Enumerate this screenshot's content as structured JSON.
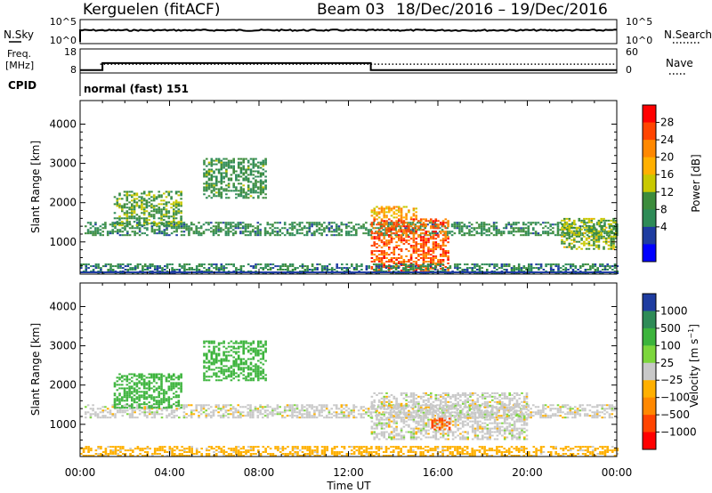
{
  "header": {
    "station": "Kerguelen (fitACF)",
    "beam": "Beam 03",
    "dates": "18/Dec/2016 – 19/Dec/2016"
  },
  "nsky_panel": {
    "left_label": "N.Sky",
    "right_label": "N.Search",
    "left_ticks": [
      "10^5",
      "10^0"
    ],
    "right_ticks": [
      "10^5",
      "10^0"
    ]
  },
  "freq_panel": {
    "left_label_1": "Freq.",
    "left_label_2": "[MHz]",
    "right_label": "Nave",
    "left_ticks": [
      "18",
      "8"
    ],
    "right_ticks": [
      "60",
      "0"
    ],
    "cpid_label": "CPID",
    "cpid_value": "normal (fast) 151"
  },
  "power_panel": {
    "ylabel": "Slant Range [km]",
    "yticks": [
      "4000",
      "3000",
      "2000",
      "1000"
    ],
    "colorbar_label": "Power [dB]",
    "colorbar_ticks": [
      "28",
      "24",
      "20",
      "16",
      "12",
      "8",
      "4"
    ],
    "colors": [
      "#ff0000",
      "#ff4400",
      "#ff8800",
      "#ffb000",
      "#c8c800",
      "#3c8c3c",
      "#2e8b57",
      "#1e3ca0",
      "#0000ff"
    ]
  },
  "velocity_panel": {
    "ylabel": "Slant Range [km]",
    "yticks": [
      "4000",
      "3000",
      "2000",
      "1000"
    ],
    "colorbar_label": "Velocity [m s^-1]",
    "colorbar_ticks": [
      "1000",
      "500",
      "100",
      "25",
      "−25",
      "−100",
      "−500",
      "−1000"
    ],
    "colors": [
      "#1e3ca0",
      "#2e8b57",
      "#3cb43c",
      "#7cd63c",
      "#c8c8c8",
      "#ffb000",
      "#ff8800",
      "#ff4400",
      "#ff0000"
    ]
  },
  "x_axis": {
    "ticks": [
      "00:00",
      "04:00",
      "08:00",
      "12:00",
      "16:00",
      "20:00",
      "00:00"
    ],
    "label": "Time UT"
  },
  "chart_data": [
    {
      "type": "line",
      "name": "N.Sky / N.Search",
      "x_range_hours": [
        0,
        24
      ],
      "y_scale": "log",
      "ylim": [
        1,
        100000
      ]
    },
    {
      "type": "line",
      "name": "Freq / Nave",
      "x_range_hours": [
        0,
        24
      ],
      "freq_ylim_mhz": [
        8,
        18
      ],
      "nave_ylim": [
        0,
        60
      ],
      "freq_steps": [
        {
          "start_hour": 0,
          "end_hour": 1,
          "value": 9.2
        },
        {
          "start_hour": 1,
          "end_hour": 13,
          "value": 12.1
        },
        {
          "start_hour": 13,
          "end_hour": 24,
          "value": 9.2
        }
      ],
      "nave_approx": 22
    },
    {
      "type": "heatmap",
      "name": "Power",
      "x_label": "Time UT",
      "y_label": "Slant Range [km]",
      "x_range_hours": [
        0,
        24
      ],
      "y_range_km": [
        180,
        4600
      ],
      "color_range_db": [
        0,
        31
      ],
      "features": [
        {
          "from_hour": 0.2,
          "to_hour": 24,
          "range_km": [
            1150,
            1500
          ],
          "level_db": 9
        },
        {
          "from_hour": 1.5,
          "to_hour": 4.5,
          "range_km": [
            1400,
            2300
          ],
          "level_db": 12
        },
        {
          "from_hour": 5.5,
          "to_hour": 8.3,
          "range_km": [
            2100,
            3100
          ],
          "level_db": 10
        },
        {
          "from_hour": 13.0,
          "to_hour": 16.5,
          "range_km": [
            250,
            1600
          ],
          "level_db": 26
        },
        {
          "from_hour": 13.0,
          "to_hour": 15.0,
          "range_km": [
            1600,
            1900
          ],
          "level_db": 20
        },
        {
          "from_hour": 21.5,
          "to_hour": 24,
          "range_km": [
            800,
            1600
          ],
          "level_db": 14
        },
        {
          "from_hour": 0,
          "to_hour": 24,
          "range_km": [
            180,
            450
          ],
          "level_db": 8
        }
      ]
    },
    {
      "type": "heatmap",
      "name": "Velocity",
      "x_label": "Time UT",
      "y_label": "Slant Range [km]",
      "x_range_hours": [
        0,
        24
      ],
      "y_range_km": [
        180,
        4600
      ],
      "color_range_ms": [
        -1000,
        1000
      ],
      "features": [
        {
          "from_hour": 0.2,
          "to_hour": 24,
          "range_km": [
            1150,
            1500
          ],
          "velocity": 0
        },
        {
          "from_hour": 1.5,
          "to_hour": 4.5,
          "range_km": [
            1400,
            2300
          ],
          "velocity": 300
        },
        {
          "from_hour": 5.5,
          "to_hour": 8.3,
          "range_km": [
            2100,
            3100
          ],
          "velocity": 150
        },
        {
          "from_hour": 13.0,
          "to_hour": 20.0,
          "range_km": [
            600,
            1800
          ],
          "velocity": 0
        },
        {
          "from_hour": 15.7,
          "to_hour": 16.5,
          "range_km": [
            850,
            1150
          ],
          "velocity": -500
        },
        {
          "from_hour": 0,
          "to_hour": 24,
          "range_km": [
            180,
            450
          ],
          "velocity": -50
        }
      ]
    }
  ]
}
